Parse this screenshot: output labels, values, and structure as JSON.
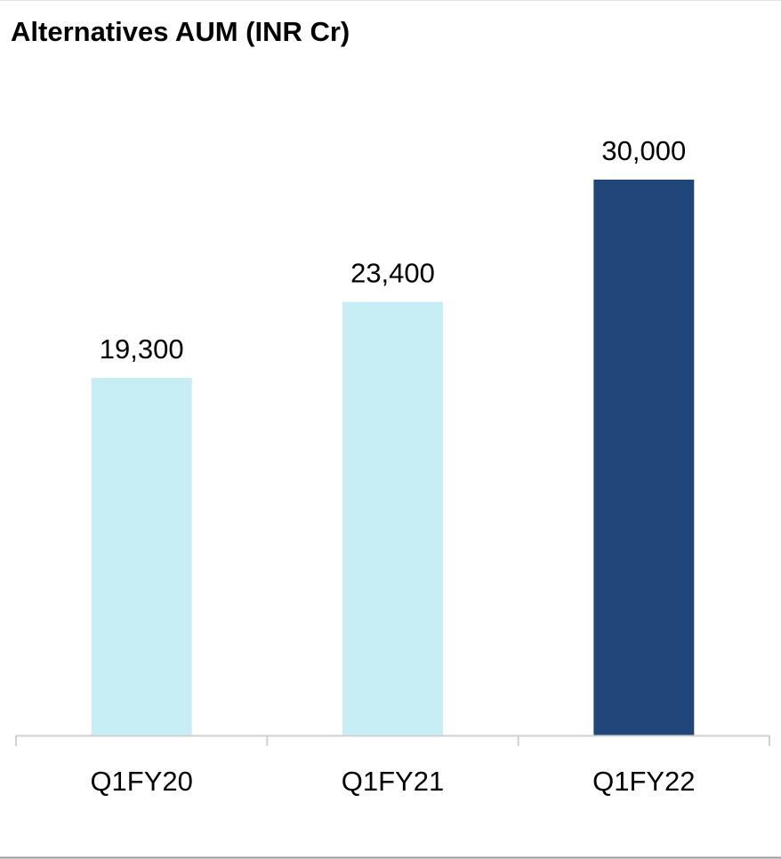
{
  "chart_data": {
    "type": "bar",
    "title": "Alternatives AUM (INR Cr)",
    "categories": [
      "Q1FY20",
      "Q1FY21",
      "Q1FY22"
    ],
    "values": [
      19300,
      23400,
      30000
    ],
    "value_labels": [
      "19,300",
      "23,400",
      "30,000"
    ],
    "colors": [
      "#c8eef5",
      "#c8eef5",
      "#21467a"
    ],
    "ylim": [
      0,
      30000
    ]
  }
}
